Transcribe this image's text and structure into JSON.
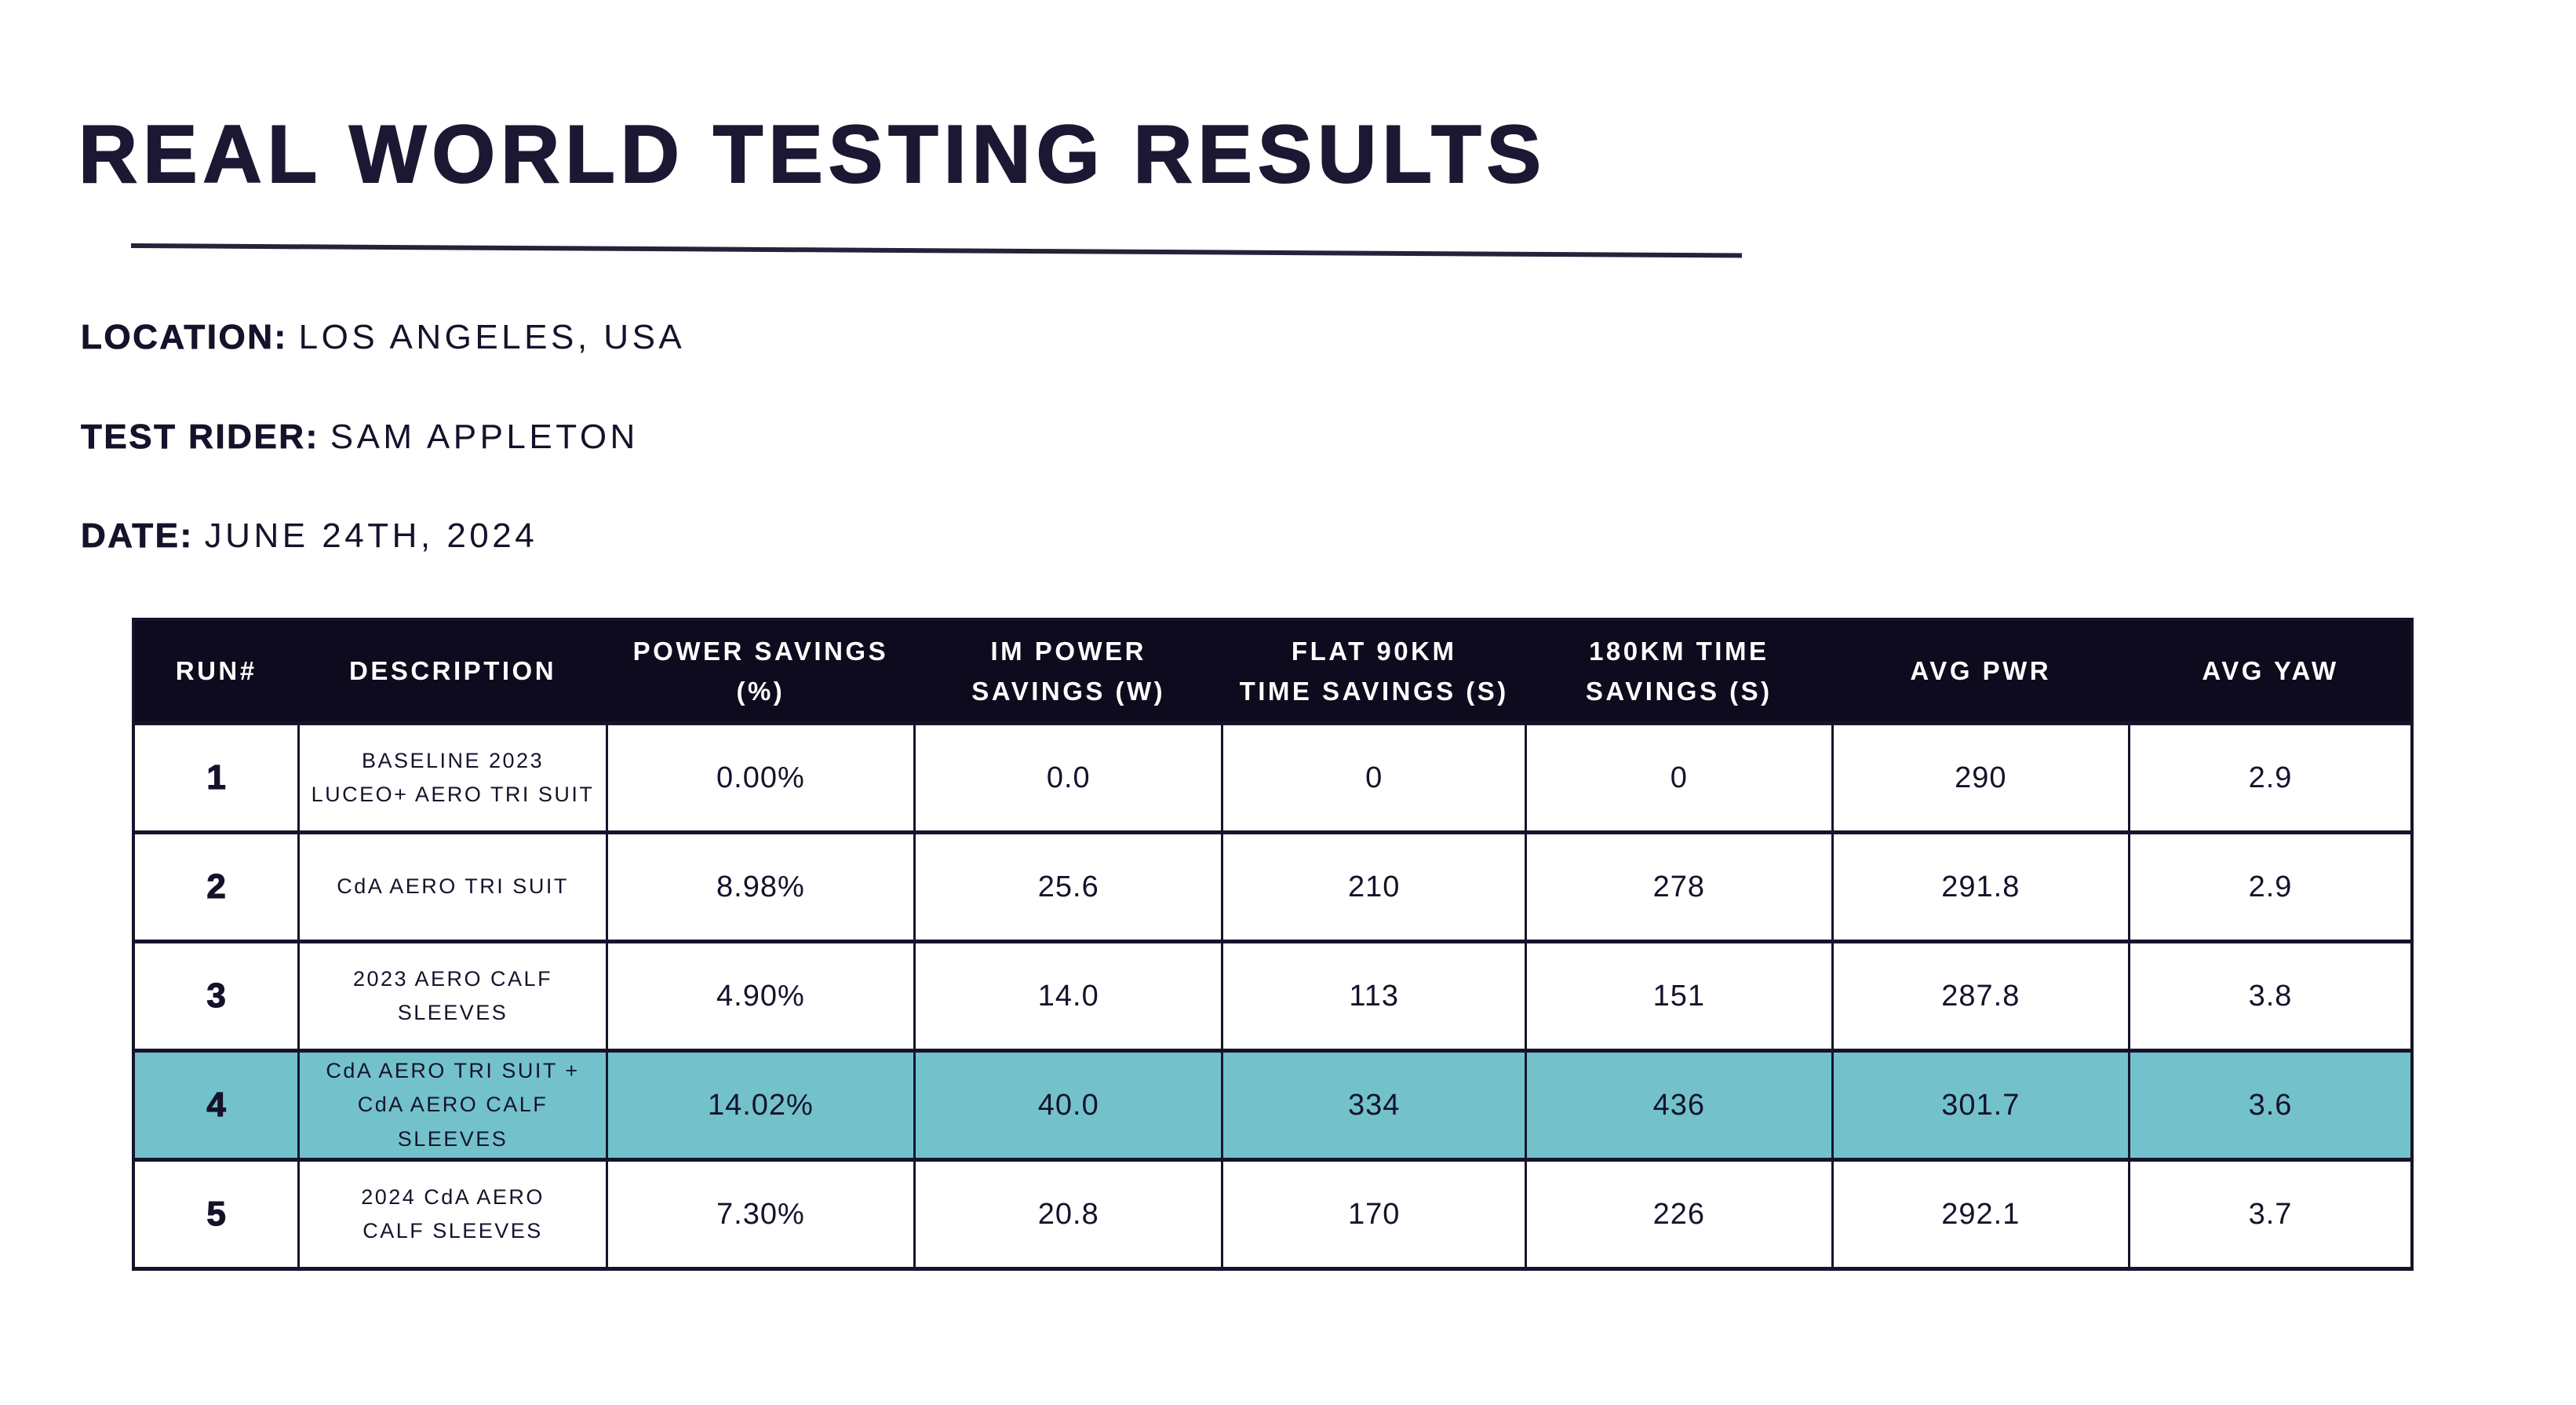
{
  "page": {
    "title": "REAL WORLD TESTING RESULTS",
    "meta": [
      {
        "label": "LOCATION:",
        "value": "LOS ANGELES, USA"
      },
      {
        "label": "TEST RIDER:",
        "value": "SAM APPLETON"
      },
      {
        "label": "DATE:",
        "value": "JUNE 24TH, 2024"
      }
    ]
  },
  "colors": {
    "ink": "#15132b",
    "header_bg": "#0d0b1d",
    "border": "#16142c",
    "highlight_row": "#73c2cb"
  },
  "table": {
    "highlighted_run": "4",
    "headers": [
      {
        "line1": "RUN#",
        "line2": ""
      },
      {
        "line1": "DESCRIPTION",
        "line2": ""
      },
      {
        "line1": "POWER SAVINGS",
        "line2": "(%)"
      },
      {
        "line1": "IM POWER",
        "line2": "SAVINGS (W)"
      },
      {
        "line1": "FLAT 90KM",
        "line2": "TIME SAVINGS (S)"
      },
      {
        "line1": "180KM TIME",
        "line2": "SAVINGS (S)"
      },
      {
        "line1": "AVG PWR",
        "line2": ""
      },
      {
        "line1": "AVG YAW",
        "line2": ""
      }
    ],
    "rows": [
      {
        "run": "1",
        "description": {
          "line1": "BASELINE 2023",
          "line2": "LUCEO+ AERO TRI SUIT"
        },
        "power_savings_pct": "0.00%",
        "im_power_savings_w": "0.0",
        "flat_90km_time_savings_s": "0",
        "time_savings_180km_s": "0",
        "avg_pwr": "290",
        "avg_yaw": "2.9"
      },
      {
        "run": "2",
        "description": {
          "line1": "CdA AERO TRI SUIT",
          "line2": ""
        },
        "power_savings_pct": "8.98%",
        "im_power_savings_w": "25.6",
        "flat_90km_time_savings_s": "210",
        "time_savings_180km_s": "278",
        "avg_pwr": "291.8",
        "avg_yaw": "2.9"
      },
      {
        "run": "3",
        "description": {
          "line1": "2023 AERO CALF SLEEVES",
          "line2": ""
        },
        "power_savings_pct": "4.90%",
        "im_power_savings_w": "14.0",
        "flat_90km_time_savings_s": "113",
        "time_savings_180km_s": "151",
        "avg_pwr": "287.8",
        "avg_yaw": "3.8"
      },
      {
        "run": "4",
        "description": {
          "line1": "CdA AERO TRI SUIT +",
          "line2": "CdA AERO CALF SLEEVES"
        },
        "power_savings_pct": "14.02%",
        "im_power_savings_w": "40.0",
        "flat_90km_time_savings_s": "334",
        "time_savings_180km_s": "436",
        "avg_pwr": "301.7",
        "avg_yaw": "3.6"
      },
      {
        "run": "5",
        "description": {
          "line1": "2024 CdA AERO",
          "line2": "CALF SLEEVES"
        },
        "power_savings_pct": "7.30%",
        "im_power_savings_w": "20.8",
        "flat_90km_time_savings_s": "170",
        "time_savings_180km_s": "226",
        "avg_pwr": "292.1",
        "avg_yaw": "3.7"
      }
    ]
  }
}
